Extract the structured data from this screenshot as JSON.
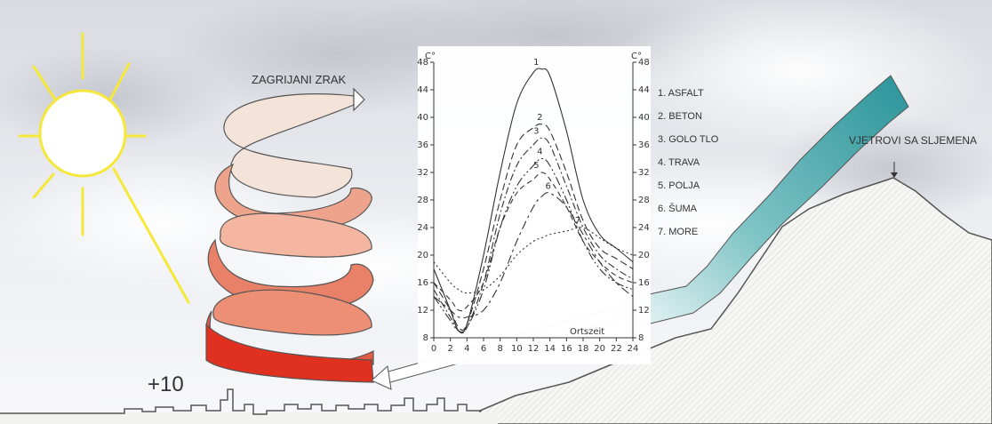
{
  "labels": {
    "heated_air": "ZAGRIJANI ZRAK",
    "winds": "VJETROVI SA SLJEMENA",
    "temperature": "+10",
    "time_axis": "Ortszeit",
    "unit_left": "C°",
    "unit_right": "C°"
  },
  "legend": [
    "1. ASFALT",
    "2. BETON",
    "3. GOLO TLO",
    "4. TRAVA",
    "5. POLJA",
    "6. ŠUMA",
    "7. MORE"
  ],
  "colors": {
    "sun": "#f5e83a",
    "spiral_top": "#f2dccf",
    "spiral_bottom": "#e03020",
    "wind_arrow": "#2f9a9f",
    "hill_line": "#555555"
  },
  "chart_data": {
    "type": "line",
    "xlabel": "Ortszeit",
    "ylabel": "C°",
    "xlim": [
      0,
      24
    ],
    "ylim": [
      8,
      48
    ],
    "x_ticks": [
      0,
      2,
      4,
      6,
      8,
      10,
      12,
      14,
      16,
      18,
      20,
      22,
      24
    ],
    "y_ticks": [
      8,
      12,
      16,
      20,
      24,
      28,
      32,
      36,
      40,
      44,
      48
    ],
    "x": [
      0,
      2,
      3,
      4,
      6,
      8,
      10,
      12,
      13,
      14,
      16,
      18,
      20,
      22,
      24
    ],
    "series": [
      {
        "label": "1",
        "dash": "",
        "values": [
          18,
          12,
          9,
          10,
          20,
          32,
          42,
          46.5,
          47,
          46,
          38,
          28,
          23,
          21,
          19
        ]
      },
      {
        "label": "2",
        "dash": "8,4",
        "values": [
          16,
          12,
          9.5,
          10,
          18,
          28,
          36,
          38.5,
          39,
          38,
          32,
          25,
          21,
          19.5,
          18
        ]
      },
      {
        "label": "3",
        "dash": "8,3,2,3",
        "values": [
          15,
          11,
          9,
          9.5,
          16,
          26,
          33,
          36,
          37,
          36,
          30,
          24,
          20,
          18,
          16.5
        ]
      },
      {
        "label": "4",
        "dash": "10,3,2,3,2,3",
        "values": [
          14,
          10.5,
          9,
          9.5,
          15,
          24,
          30,
          33,
          34,
          33,
          28,
          22,
          18,
          16,
          15
        ]
      },
      {
        "label": "5",
        "dash": "6,4",
        "values": [
          16,
          13.5,
          12,
          12.5,
          16,
          24,
          29,
          31,
          32,
          31,
          27,
          22,
          19,
          17,
          16
        ]
      },
      {
        "label": "6",
        "dash": "10,4,3,4",
        "values": [
          14,
          12,
          11,
          11,
          12,
          16,
          22,
          27,
          28.5,
          29,
          27,
          23,
          19,
          16,
          14
        ]
      },
      {
        "label": "7",
        "dash": "2,3",
        "values": [
          19,
          16,
          15,
          14.5,
          15,
          17,
          20,
          22,
          22.5,
          23,
          23.5,
          24,
          22.5,
          21,
          20
        ]
      }
    ]
  }
}
